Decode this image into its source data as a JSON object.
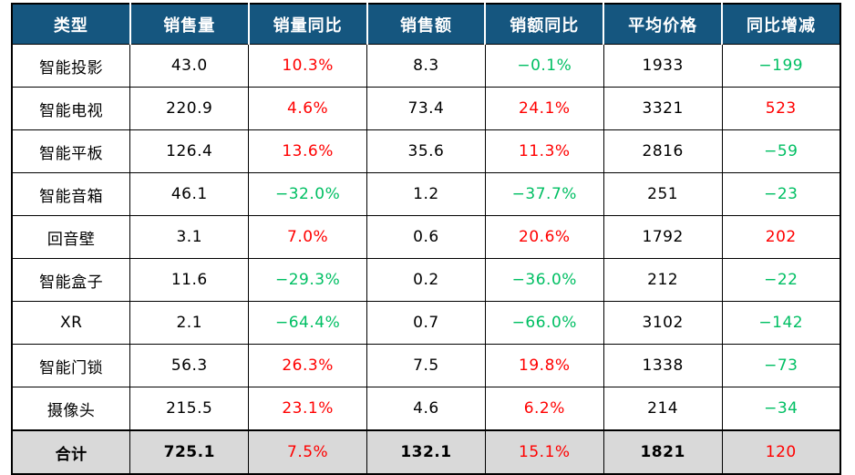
{
  "chart_data": {
    "type": "table",
    "columns": [
      "类型",
      "销售量",
      "销量同比",
      "销售额",
      "销额同比",
      "平均价格",
      "同比增减"
    ],
    "rows": [
      [
        "智能投影",
        "43.0",
        "10.3%",
        "8.3",
        "−0.1%",
        "1933",
        "−199"
      ],
      [
        "智能电视",
        "220.9",
        "4.6%",
        "73.4",
        "24.1%",
        "3321",
        "523"
      ],
      [
        "智能平板",
        "126.4",
        "13.6%",
        "35.6",
        "11.3%",
        "2816",
        "−59"
      ],
      [
        "智能音箱",
        "46.1",
        "−32.0%",
        "1.2",
        "−37.7%",
        "251",
        "−23"
      ],
      [
        "回音壁",
        "3.1",
        "7.0%",
        "0.6",
        "20.6%",
        "1792",
        "202"
      ],
      [
        "智能盒子",
        "11.6",
        "−29.3%",
        "0.2",
        "−36.0%",
        "212",
        "−22"
      ],
      [
        "XR",
        "2.1",
        "−64.4%",
        "0.7",
        "−66.0%",
        "3102",
        "−142"
      ],
      [
        "智能门锁",
        "56.3",
        "26.3%",
        "7.5",
        "19.8%",
        "1338",
        "−73"
      ],
      [
        "摄像头",
        "215.5",
        "23.1%",
        "4.6",
        "6.2%",
        "214",
        "−34"
      ]
    ],
    "total_row": [
      "合计",
      "725.1",
      "7.5%",
      "132.1",
      "15.1%",
      "1821",
      "120"
    ],
    "legend_note": "colored columns: 销量同比 / 销额同比 / 同比增减 — positive red, negative green"
  },
  "colors": {
    "header_bg": "#15567F",
    "header_text": "#FFFFFF",
    "positive": "#FF0000",
    "negative": "#00BF63",
    "total_row_bg": "#D9D9D9",
    "body_text": "#000000",
    "grid": "#000000"
  }
}
